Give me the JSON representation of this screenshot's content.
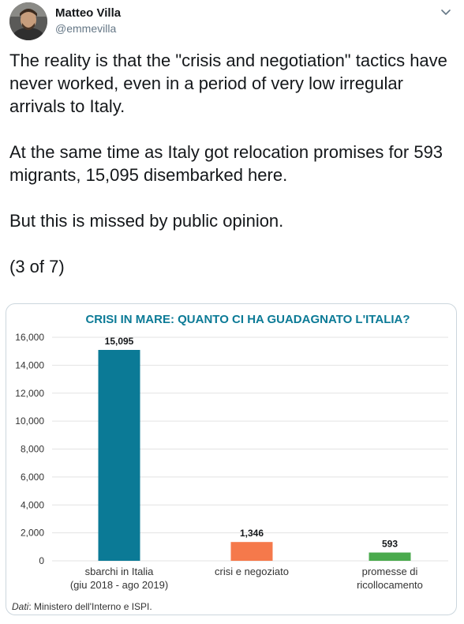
{
  "user": {
    "name": "Matteo Villa",
    "handle": "@emmevilla"
  },
  "tweet": {
    "paragraphs": [
      "The reality is that the \"crisis and negotiation\" tactics have never worked, even in a period of very low irregular arrivals to Italy.",
      "At the same time as Italy got relocation promises for 593 migrants, 15,095 disembarked here.",
      "But this is missed by public opinion.",
      "(3 of 7)"
    ]
  },
  "chart_data": {
    "type": "bar",
    "title": "CRISI IN MARE: QUANTO CI HA GUADAGNATO L'ITALIA?",
    "categories": [
      [
        "sbarchi in Italia",
        "(giu 2018 - ago 2019)"
      ],
      [
        "crisi e negoziato"
      ],
      [
        "promesse di",
        "ricollocamento"
      ]
    ],
    "values": [
      15095,
      1346,
      593
    ],
    "value_labels": [
      "15,095",
      "1,346",
      "593"
    ],
    "colors": [
      "#0b7a96",
      "#f5794b",
      "#4aaa4d"
    ],
    "ylim": [
      0,
      16000
    ],
    "yticks": [
      0,
      2000,
      4000,
      6000,
      8000,
      10000,
      12000,
      14000,
      16000
    ],
    "ytick_labels": [
      "0",
      "2,000",
      "4,000",
      "6,000",
      "8,000",
      "10,000",
      "12,000",
      "14,000",
      "16,000"
    ],
    "grid": true,
    "source_label": "Dati",
    "source_text": ": Ministero dell'Interno e ISPI.",
    "title_color": "#0b7a96"
  }
}
